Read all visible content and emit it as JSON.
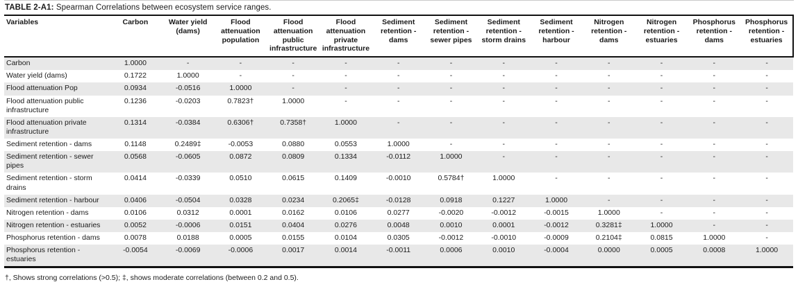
{
  "title": {
    "label": "TABLE 2-A1:",
    "text": " Spearman Correlations between ecosystem service ranges."
  },
  "table": {
    "row_header": "Variables",
    "columns": [
      "Carbon",
      "Water yield (dams)",
      "Flood attenuation population",
      "Flood attenuation public infrastructure",
      "Flood attenuation private infrastructure",
      "Sediment retention - dams",
      "Sediment retention - sewer pipes",
      "Sediment retention - storm drains",
      "Sediment retention - harbour",
      "Nitrogen retention - dams",
      "Nitrogen retention - estuaries",
      "Phosphorus retention - dams",
      "Phosphorus retention - estuaries"
    ],
    "rows": [
      {
        "label": "Carbon",
        "values": [
          "1.0000",
          "-",
          "-",
          "-",
          "-",
          "-",
          "-",
          "-",
          "-",
          "-",
          "-",
          "-",
          "-"
        ]
      },
      {
        "label": "Water yield (dams)",
        "values": [
          "0.1722",
          "1.0000",
          "-",
          "-",
          "-",
          "-",
          "-",
          "-",
          "-",
          "-",
          "-",
          "-",
          "-"
        ]
      },
      {
        "label": "Flood attenuation Pop",
        "values": [
          "0.0934",
          "-0.0516",
          "1.0000",
          "-",
          "-",
          "-",
          "-",
          "-",
          "-",
          "-",
          "-",
          "-",
          "-"
        ]
      },
      {
        "label": "Flood attenuation public infrastructure",
        "values": [
          "0.1236",
          "-0.0203",
          "0.7823†",
          "1.0000",
          "-",
          "-",
          "-",
          "-",
          "-",
          "-",
          "-",
          "-",
          "-"
        ]
      },
      {
        "label": "Flood attenuation private infrastructure",
        "values": [
          "0.1314",
          "-0.0384",
          "0.6306†",
          "0.7358†",
          "1.0000",
          "-",
          "-",
          "-",
          "-",
          "-",
          "-",
          "-",
          "-"
        ]
      },
      {
        "label": "Sediment retention - dams",
        "values": [
          "0.1148",
          "0.2489‡",
          "-0.0053",
          "0.0880",
          "0.0553",
          "1.0000",
          "-",
          "-",
          "-",
          "-",
          "-",
          "-",
          "-"
        ]
      },
      {
        "label": "Sediment retention - sewer pipes",
        "values": [
          "0.0568",
          "-0.0605",
          "0.0872",
          "0.0809",
          "0.1334",
          "-0.0112",
          "1.0000",
          "-",
          "-",
          "-",
          "-",
          "-",
          "-"
        ]
      },
      {
        "label": "Sediment retention - storm drains",
        "values": [
          "0.0414",
          "-0.0339",
          "0.0510",
          "0.0615",
          "0.1409",
          "-0.0010",
          "0.5784†",
          "1.0000",
          "-",
          "-",
          "-",
          "-",
          "-"
        ]
      },
      {
        "label": "Sediment retention - harbour",
        "values": [
          "0.0406",
          "-0.0504",
          "0.0328",
          "0.0234",
          "0.2065‡",
          "-0.0128",
          "0.0918",
          "0.1227",
          "1.0000",
          "-",
          "-",
          "-",
          "-"
        ]
      },
      {
        "label": "Nitrogen retention - dams",
        "values": [
          "0.0106",
          "0.0312",
          "0.0001",
          "0.0162",
          "0.0106",
          "0.0277",
          "-0.0020",
          "-0.0012",
          "-0.0015",
          "1.0000",
          "-",
          "-",
          "-"
        ]
      },
      {
        "label": "Nitrogen retention - estuaries",
        "values": [
          "0.0052",
          "-0.0006",
          "0.0151",
          "0.0404",
          "0.0276",
          "0.0048",
          "0.0010",
          "0.0001",
          "-0.0012",
          "0.3281‡",
          "1.0000",
          "-",
          "-"
        ]
      },
      {
        "label": "Phosphorus retention - dams",
        "values": [
          "0.0078",
          "0.0188",
          "0.0005",
          "0.0155",
          "0.0104",
          "0.0305",
          "-0.0012",
          "-0.0010",
          "-0.0009",
          "0.2104‡",
          "0.0815",
          "1.0000",
          "-"
        ]
      },
      {
        "label": "Phosphorus retention - estuaries",
        "values": [
          "-0.0054",
          "-0.0069",
          "-0.0006",
          "0.0017",
          "0.0014",
          "-0.0011",
          "0.0006",
          "0.0010",
          "-0.0004",
          "0.0000",
          "0.0005",
          "0.0008",
          "1.0000"
        ]
      }
    ]
  },
  "footnote": "†, Shows strong correlations (>0.5); ‡, shows moderate correlations (between 0.2 and 0.5)."
}
